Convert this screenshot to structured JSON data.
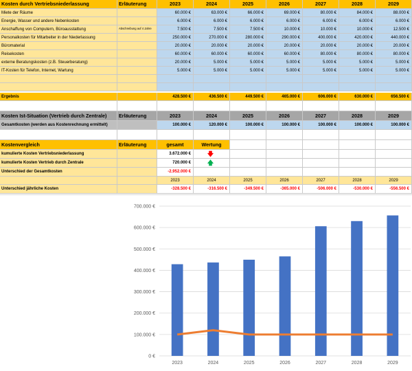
{
  "years": [
    "2023",
    "2024",
    "2025",
    "2026",
    "2027",
    "2028",
    "2029"
  ],
  "header": {
    "title": "Kosten durch Vertriebsniederlassung",
    "erlaeuterung": "Erläuterung"
  },
  "cost_rows": [
    {
      "label": "Miete der Räume",
      "note": "",
      "values": [
        "60.000 €",
        "63.000 €",
        "66.000 €",
        "69.000 €",
        "80.000 €",
        "84.000 €",
        "88.000 €"
      ]
    },
    {
      "label": "Energie, Wasser und andere Nebenkosten",
      "note": "",
      "values": [
        "6.000 €",
        "6.000 €",
        "6.000 €",
        "6.000 €",
        "6.000 €",
        "6.000 €",
        "6.000 €"
      ]
    },
    {
      "label": "Anschaffung von Computern, Büroausstattung",
      "note": "Abschreibung auf 4 Jahre",
      "values": [
        "7.500 €",
        "7.500 €",
        "7.500 €",
        "10.000 €",
        "10.000 €",
        "10.000 €",
        "12.500 €"
      ]
    },
    {
      "label": "Personalkosten für Mitarbeiter in der Niederlassung",
      "note": "",
      "values": [
        "250.000 €",
        "270.000 €",
        "280.000 €",
        "290.000 €",
        "400.000 €",
        "420.000 €",
        "440.000 €"
      ]
    },
    {
      "label": "Büromaterial",
      "note": "",
      "values": [
        "20.000 €",
        "20.000 €",
        "20.000 €",
        "20.000 €",
        "20.000 €",
        "20.000 €",
        "20.000 €"
      ]
    },
    {
      "label": "Reisekosten",
      "note": "",
      "values": [
        "60.000 €",
        "60.000 €",
        "60.000 €",
        "60.000 €",
        "80.000 €",
        "80.000 €",
        "80.000 €"
      ]
    },
    {
      "label": "externe Beratungskosten (z.B. Steuerberatung)",
      "note": "",
      "values": [
        "20.000 €",
        "5.000 €",
        "5.000 €",
        "5.000 €",
        "5.000 €",
        "5.000 €",
        "5.000 €"
      ]
    },
    {
      "label": "IT-Kosten für Telefon, Internet, Wartung",
      "note": "",
      "values": [
        "5.000 €",
        "5.000 €",
        "5.000 €",
        "5.000 €",
        "5.000 €",
        "5.000 €",
        "5.000 €"
      ]
    },
    {
      "label": "",
      "note": "",
      "values": [
        "",
        "",
        "",
        "",
        "",
        "",
        ""
      ]
    },
    {
      "label": "",
      "note": "",
      "values": [
        "",
        "",
        "",
        "",
        "",
        "",
        ""
      ]
    }
  ],
  "ergebnis": {
    "label": "Ergebnis",
    "values": [
      "428.500 €",
      "436.500 €",
      "449.500 €",
      "465.000 €",
      "606.000 €",
      "630.000 €",
      "656.500 €"
    ]
  },
  "ist": {
    "title": "Kosten Ist-Situation (Vertrieb durch Zentrale)",
    "erlaeuterung": "Erläuterung",
    "label": "Gesamtkosten (werden aus Kostenrechnung ermittelt)",
    "values": [
      "100.000 €",
      "120.000 €",
      "100.000 €",
      "100.000 €",
      "100.000 €",
      "100.000 €",
      "100.000 €"
    ]
  },
  "vergleich": {
    "title": "Kostenvergleich",
    "erlaeuterung": "Erläuterung",
    "gesamt": "gesamt",
    "wertung": "Wertung",
    "rows": [
      {
        "label": "kumulierte Kosten Vertriebsniederlassung",
        "value": "3.672.000 €",
        "icon": "arrow-down"
      },
      {
        "label": "kumulierte Kosten Vertrieb durch Zentrale",
        "value": "720.000 €",
        "icon": "arrow-up"
      },
      {
        "label": "Unterschied der Gesamtkosten",
        "value": "-2.952.000 €",
        "icon": ""
      }
    ],
    "jaehrlich_label": "Unterschied jährliche Kosten",
    "jaehrlich_values": [
      "-328.500 €",
      "-316.500 €",
      "-349.500 €",
      "-365.000 €",
      "-506.000 €",
      "-530.000 €",
      "-556.500 €"
    ]
  },
  "chart_data": {
    "type": "bar",
    "categories": [
      "2023",
      "2024",
      "2025",
      "2026",
      "2027",
      "2028",
      "2029"
    ],
    "series": [
      {
        "values": [
          428500,
          436500,
          449500,
          465000,
          606000,
          630000,
          656500
        ],
        "kind": "bar",
        "color": "#4472c4"
      },
      {
        "values": [
          100000,
          120000,
          100000,
          100000,
          100000,
          100000,
          100000
        ],
        "kind": "line",
        "color": "#ed7d31"
      }
    ],
    "ylim": [
      0,
      700000
    ],
    "yticks": [
      "0 €",
      "100.000 €",
      "200.000 €",
      "300.000 €",
      "400.000 €",
      "500.000 €",
      "600.000 €",
      "700.000 €"
    ],
    "grid": true
  }
}
